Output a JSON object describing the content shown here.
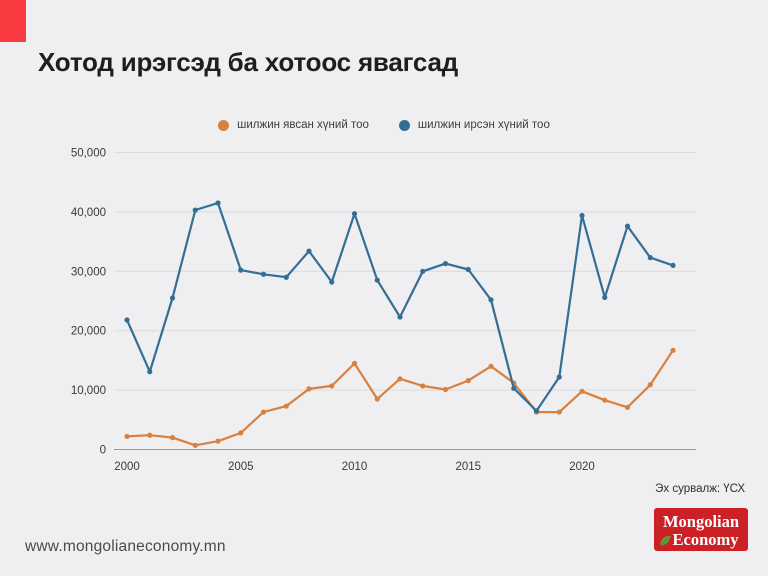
{
  "page": {
    "title": "Хотод ирэгсэд ба хотоос явагсад",
    "source": "Эх сурвалж: ҮСХ",
    "website": "www.mongolianeconomy.mn",
    "logo": {
      "line1": "Mongolian",
      "line2": "Economy"
    },
    "colors": {
      "accent_red": "#f93b42",
      "logo_red": "#cc2027",
      "leaf_green": "#5ea23a",
      "background": "#efeef0",
      "grid": "#dcdbdd",
      "axis": "#9a9a9a",
      "tick_text": "#3a3a3a"
    }
  },
  "chart_data": {
    "type": "line",
    "title": "Хотод ирэгсэд ба хотоос явагсад",
    "x": [
      2000,
      2001,
      2002,
      2003,
      2004,
      2005,
      2006,
      2007,
      2008,
      2009,
      2010,
      2011,
      2012,
      2013,
      2014,
      2015,
      2016,
      2017,
      2018,
      2019,
      2020,
      2021,
      2022,
      2023,
      2024
    ],
    "series": [
      {
        "name": "шилжин явсан хүний тоо",
        "color": "#d9803f",
        "values": [
          2200,
          2400,
          2000,
          700,
          1400,
          2800,
          6300,
          7300,
          10200,
          10700,
          14500,
          8500,
          11900,
          10700,
          10100,
          11600,
          14000,
          11200,
          6300,
          6300,
          9800,
          8300,
          7100,
          10900,
          16700
        ]
      },
      {
        "name": "шилжин ирсэн хүний тоо",
        "color": "#336e95",
        "values": [
          21800,
          13100,
          25500,
          40300,
          41500,
          30200,
          29500,
          29000,
          33400,
          28200,
          39700,
          28500,
          22300,
          30000,
          31300,
          30300,
          25200,
          10300,
          6500,
          12200,
          39400,
          25600,
          37600,
          32300,
          31000
        ]
      }
    ],
    "xlabel": "",
    "ylabel": "",
    "ylim": [
      0,
      50000
    ],
    "yticks": [
      0,
      10000,
      20000,
      30000,
      40000,
      50000
    ],
    "xticks": [
      2000,
      2005,
      2010,
      2015,
      2020
    ],
    "grid": true,
    "legend_position": "top-center"
  }
}
